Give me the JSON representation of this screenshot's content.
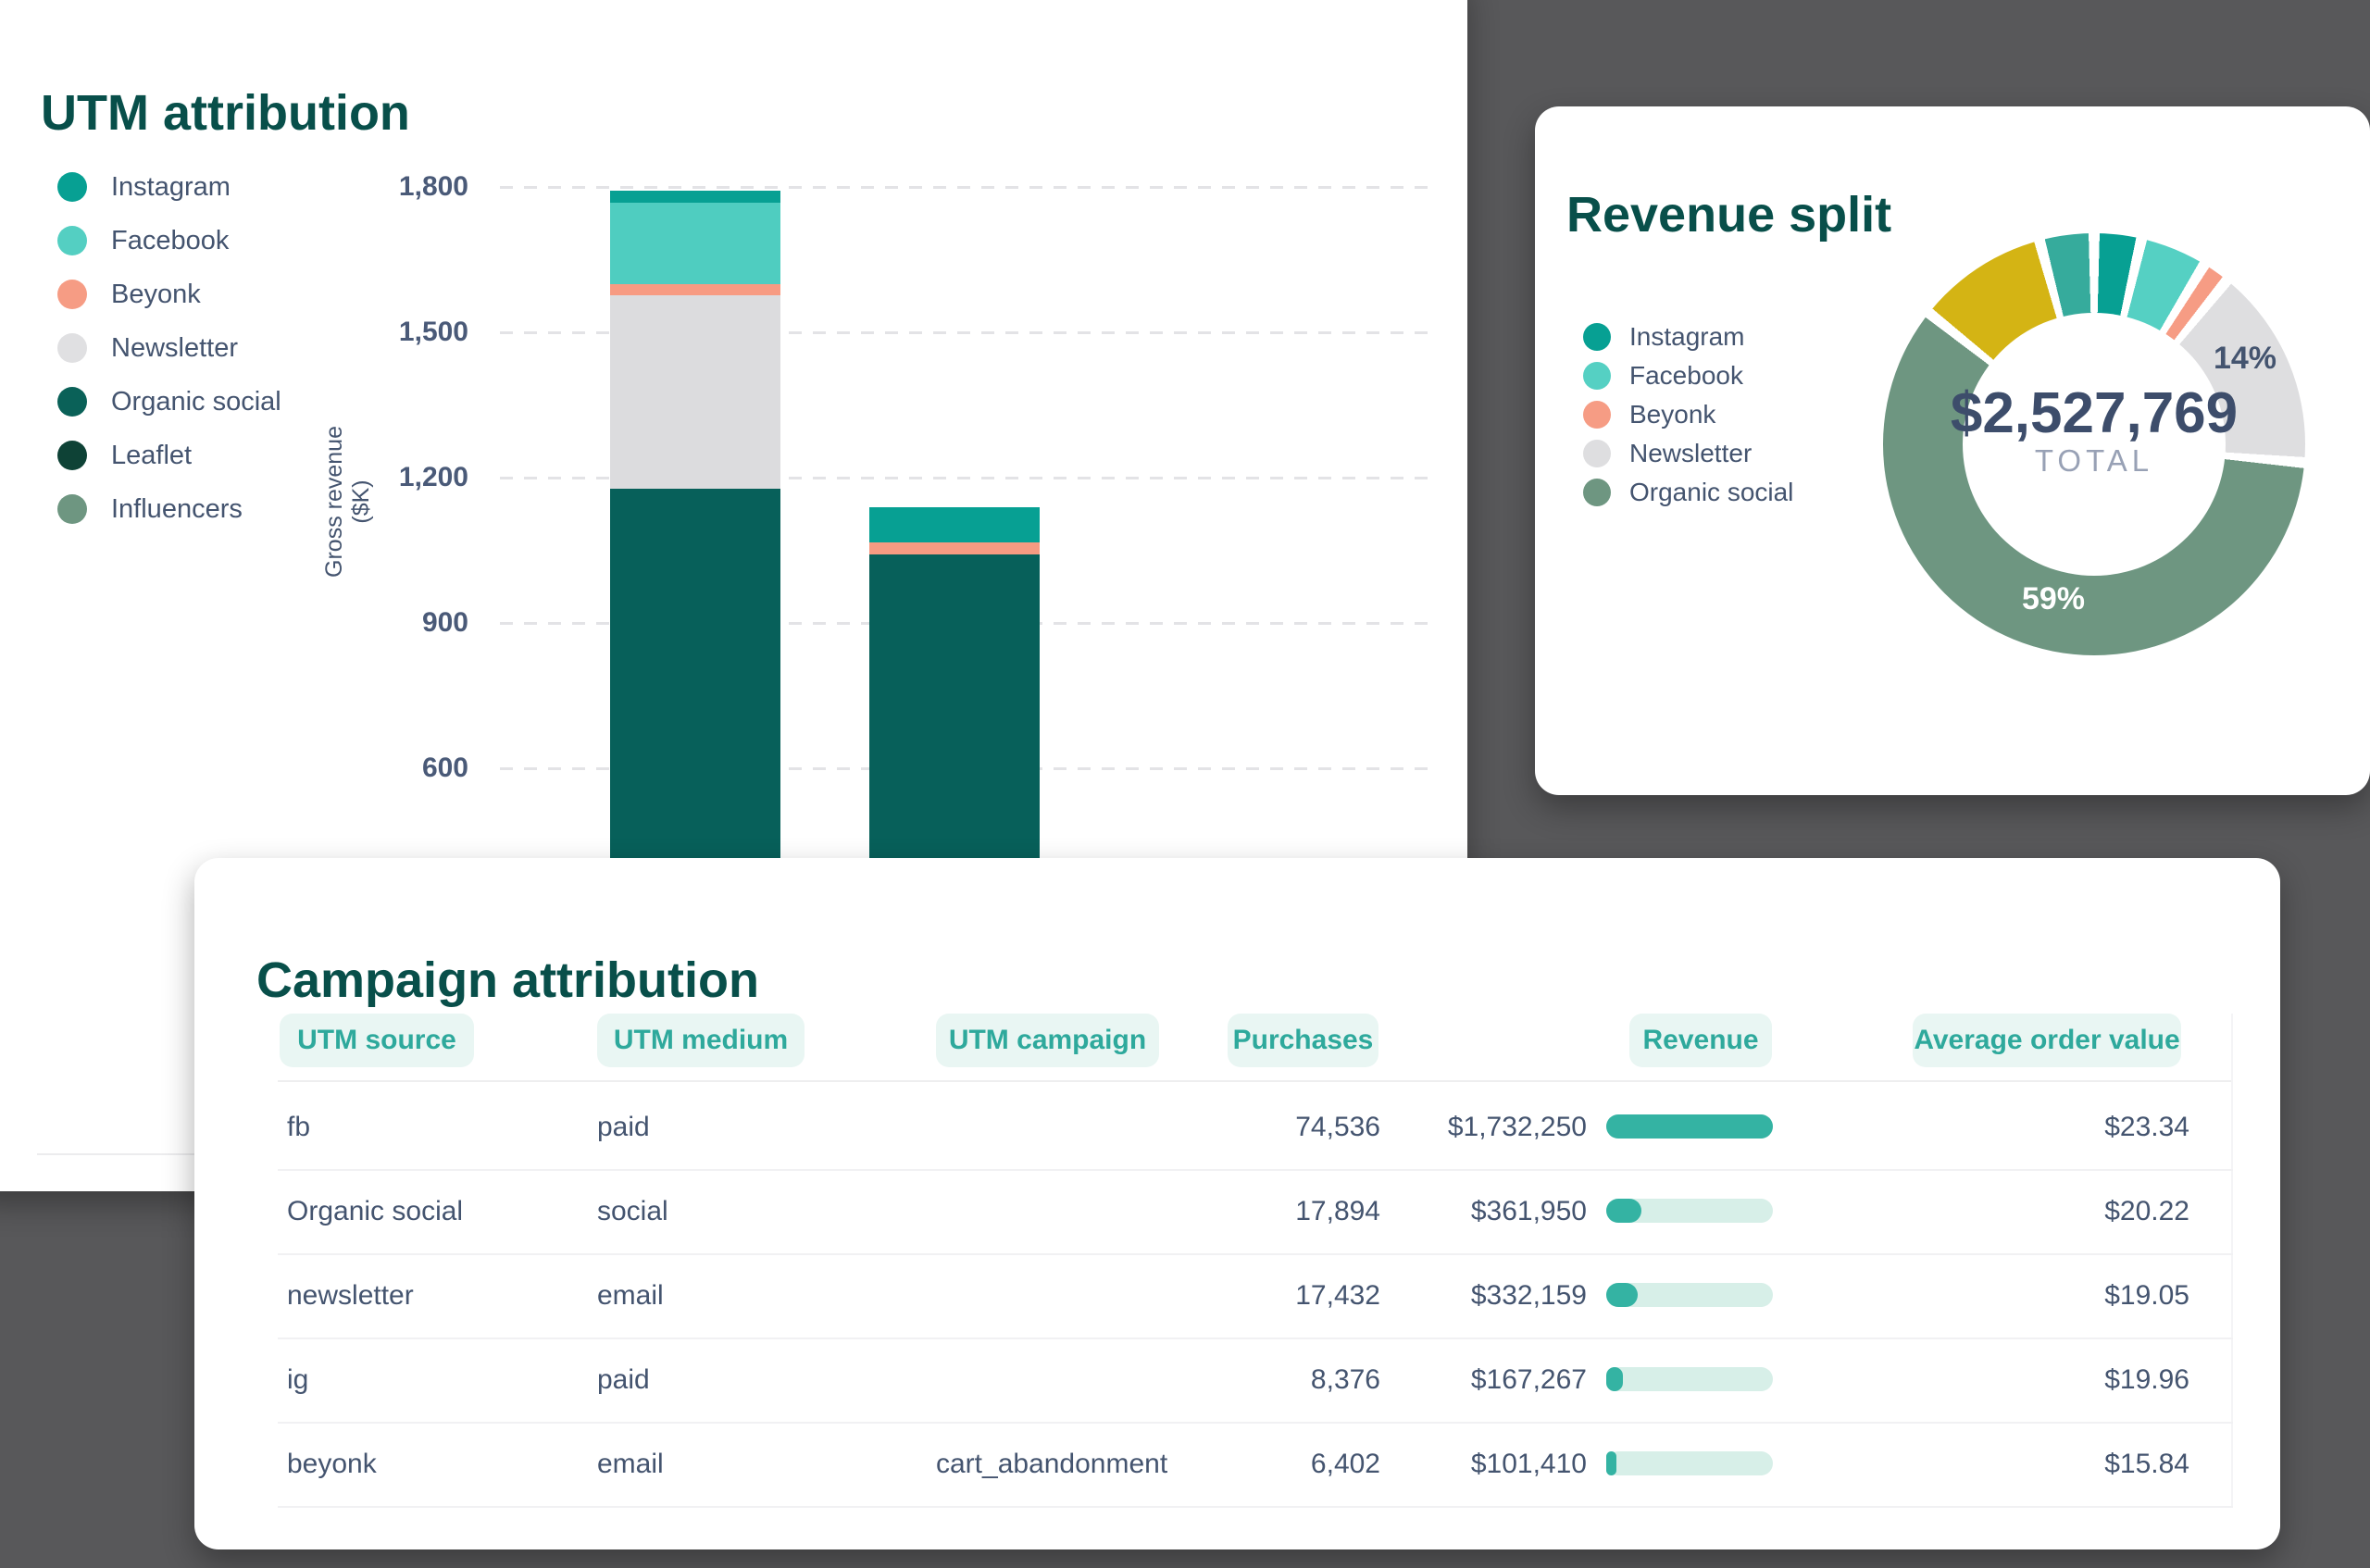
{
  "canvas": {
    "background": "#58585a"
  },
  "utm_card": {
    "title": "UTM attribution",
    "legend": [
      {
        "label": "Instagram",
        "color": "#07a093"
      },
      {
        "label": "Facebook",
        "color": "#54cfc2"
      },
      {
        "label": "Beyonk",
        "color": "#f69c84"
      },
      {
        "label": "Newsletter",
        "color": "#e0e0e2"
      },
      {
        "label": "Organic social",
        "color": "#0a6158"
      },
      {
        "label": "Leaflet",
        "color": "#0e4236"
      },
      {
        "label": "Influencers",
        "color": "#6e9681"
      }
    ],
    "y_axis_label": "Gross revenue ($K)",
    "y_ticks": [
      "1,800",
      "1,500",
      "1,200",
      "900",
      "600"
    ]
  },
  "revenue_card": {
    "title": "Revenue split",
    "legend": [
      {
        "label": "Instagram",
        "color": "#07a093"
      },
      {
        "label": "Facebook",
        "color": "#55d0c3"
      },
      {
        "label": "Beyonk",
        "color": "#f69c84"
      },
      {
        "label": "Newsletter",
        "color": "#dedee0"
      },
      {
        "label": "Organic social",
        "color": "#6e9681"
      }
    ],
    "center_value": "$2,527,769",
    "center_label": "TOTAL",
    "callout_newsletter": "14%",
    "callout_organic": "59%"
  },
  "campaign_card": {
    "title": "Campaign attribution",
    "columns": [
      "UTM source",
      "UTM medium",
      "UTM campaign",
      "Purchases",
      "Revenue",
      "Average order value"
    ],
    "rows": [
      {
        "source": "fb",
        "medium": "paid",
        "campaign": "",
        "purchases": "74,536",
        "revenue": "$1,732,250",
        "bar_percent": 100,
        "aov": "$23.34"
      },
      {
        "source": "Organic social",
        "medium": "social",
        "campaign": "",
        "purchases": "17,894",
        "revenue": "$361,950",
        "bar_percent": 21,
        "aov": "$20.22"
      },
      {
        "source": "newsletter",
        "medium": "email",
        "campaign": "",
        "purchases": "17,432",
        "revenue": "$332,159",
        "bar_percent": 19,
        "aov": "$19.05"
      },
      {
        "source": "ig",
        "medium": "paid",
        "campaign": "",
        "purchases": "8,376",
        "revenue": "$167,267",
        "bar_percent": 10,
        "aov": "$19.96"
      },
      {
        "source": "beyonk",
        "medium": "email",
        "campaign": "cart_abandonment",
        "purchases": "6,402",
        "revenue": "$101,410",
        "bar_percent": 6,
        "aov": "$15.84"
      }
    ]
  },
  "chart_data": [
    {
      "type": "bar",
      "stacked": true,
      "title": "UTM attribution",
      "xlabel": "",
      "ylabel": "Gross revenue ($K)",
      "ylim": [
        0,
        1800
      ],
      "y_ticks": [
        1800,
        1500,
        1200,
        900,
        600
      ],
      "grid": "dashed horizontal",
      "legend_position": "left",
      "categories": [
        "bar-1",
        "bar-2"
      ],
      "note": "values in $K estimated from gridlines; x-axis labels and bar bases are hidden behind the overlapping Campaign attribution card",
      "bars": [
        {
          "total": 1792,
          "segments": [
            {
              "name": "Instagram",
              "value": 25,
              "color": "#07a093"
            },
            {
              "name": "Facebook",
              "value": 168,
              "color": "#4fcdc0"
            },
            {
              "name": "Beyonk",
              "value": 23,
              "color": "#f79b82"
            },
            {
              "name": "Newsletter",
              "value": 400,
              "color": "#dcdcde"
            },
            {
              "name": "Organic social",
              "value": 1176,
              "color": "#07605a"
            }
          ]
        },
        {
          "total": 1139,
          "segments": [
            {
              "name": "Instagram",
              "value": 73,
              "color": "#07a093"
            },
            {
              "name": "Beyonk",
              "value": 25,
              "color": "#f79b82"
            },
            {
              "name": "Organic social",
              "value": 1041,
              "color": "#07605a"
            }
          ]
        }
      ]
    },
    {
      "type": "pie",
      "subtype": "donut",
      "title": "Revenue split",
      "total_label": "TOTAL",
      "total_value": "$2,527,769",
      "gap_deg": 3,
      "labels_shown": [
        "14%",
        "59%"
      ],
      "segments": [
        {
          "name": "Instagram",
          "pct": 3,
          "deg": 10,
          "color": "#07a093"
        },
        {
          "name": "Facebook",
          "pct": 4,
          "deg": 15.5,
          "color": "#55d0c3"
        },
        {
          "name": "Beyonk",
          "pct": 1,
          "deg": 4.5,
          "color": "#f69c84"
        },
        {
          "name": "Newsletter",
          "pct": 14,
          "deg": 53,
          "color": "#dedee0",
          "label": "14%"
        },
        {
          "name": "Organic social",
          "pct": 59,
          "deg": 210.5,
          "color": "#6e9681",
          "label": "59%"
        },
        {
          "name": "unlabeled-yellow",
          "pct": 9,
          "deg": 33.5,
          "color": "#d4b414"
        },
        {
          "name": "unlabeled-teal",
          "pct": 3,
          "deg": 12,
          "color": "#36ab9c"
        }
      ]
    }
  ]
}
